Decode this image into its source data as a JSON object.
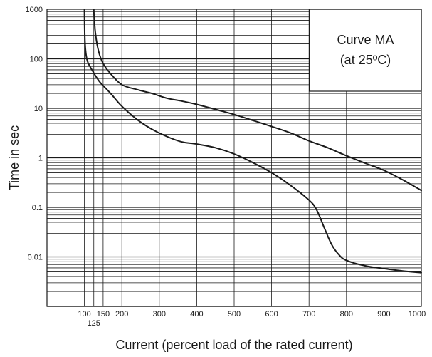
{
  "chart_data": {
    "type": "line",
    "title": "",
    "xlabel": "Current (percent load of the rated current)",
    "ylabel": "Time in sec",
    "xscale": "linear",
    "yscale": "log",
    "xlim": [
      0,
      1000
    ],
    "ylim": [
      0.001,
      1000
    ],
    "grid": true,
    "x_tick_values": [
      100,
      125,
      150,
      200,
      300,
      400,
      500,
      600,
      700,
      800,
      900,
      1000
    ],
    "x_tick_labels": [
      "100",
      "125",
      "150",
      "200",
      "300",
      "400",
      "500",
      "600",
      "700",
      "800",
      "900",
      "1000"
    ],
    "y_tick_values": [
      1000,
      100,
      10,
      1,
      0.1,
      0.01
    ],
    "y_tick_labels": [
      "1000",
      "100",
      "10",
      "1",
      "0.1",
      "0.01"
    ],
    "annotation": {
      "lines": [
        "Curve MA",
        "(at 25ºC)"
      ]
    },
    "series": [
      {
        "x": [
          125,
          126,
          130,
          138,
          150,
          170,
          200,
          240,
          280,
          320,
          360,
          400,
          450,
          500,
          550,
          600,
          650,
          700,
          750,
          800,
          850,
          900,
          950,
          1000
        ],
        "y": [
          1000,
          700,
          300,
          140,
          80,
          50,
          30,
          24,
          20,
          16,
          14,
          12,
          9.5,
          7.5,
          5.7,
          4.3,
          3.2,
          2.2,
          1.6,
          1.1,
          0.78,
          0.56,
          0.36,
          0.22
        ]
      },
      {
        "x": [
          100,
          101,
          103,
          108,
          120,
          140,
          170,
          200,
          240,
          280,
          320,
          360,
          400,
          450,
          500,
          550,
          600,
          650,
          700,
          720,
          740,
          760,
          780,
          800,
          850,
          900,
          950,
          1000
        ],
        "y": [
          1000,
          300,
          150,
          90,
          60,
          35,
          20,
          11,
          6,
          3.8,
          2.7,
          2.1,
          1.9,
          1.6,
          1.2,
          0.8,
          0.5,
          0.28,
          0.14,
          0.09,
          0.04,
          0.018,
          0.011,
          0.0085,
          0.0066,
          0.0058,
          0.0052,
          0.0048
        ]
      }
    ]
  }
}
